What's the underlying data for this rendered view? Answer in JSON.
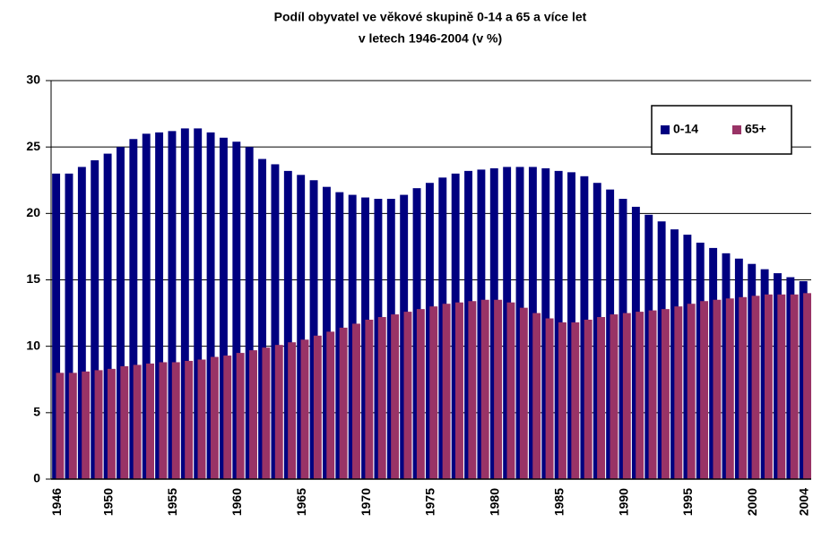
{
  "chart_data": {
    "type": "bar",
    "title": [
      "Podíl obyvatel ve věkové skupině 0-14 a 65 a více let",
      "v letech 1946-2004 (v %)"
    ],
    "categories": [
      "1946",
      null,
      null,
      null,
      "1950",
      null,
      null,
      null,
      null,
      "1955",
      null,
      null,
      null,
      null,
      "1960",
      null,
      null,
      null,
      null,
      "1965",
      null,
      null,
      null,
      null,
      "1970",
      null,
      null,
      null,
      null,
      "1975",
      null,
      null,
      null,
      null,
      "1980",
      null,
      null,
      null,
      null,
      "1985",
      null,
      null,
      null,
      null,
      "1990",
      null,
      null,
      null,
      null,
      "1995",
      null,
      null,
      null,
      null,
      "2000",
      null,
      null,
      null,
      "2004"
    ],
    "series": [
      {
        "name": "0-14",
        "color": "#000080",
        "values": [
          23.0,
          23.0,
          23.5,
          24.0,
          24.5,
          25.0,
          25.6,
          26.0,
          26.1,
          26.2,
          26.4,
          26.4,
          26.1,
          25.7,
          25.4,
          25.0,
          24.1,
          23.7,
          23.2,
          22.9,
          22.5,
          22.0,
          21.6,
          21.4,
          21.2,
          21.1,
          21.1,
          21.4,
          21.9,
          22.3,
          22.7,
          23.0,
          23.2,
          23.3,
          23.4,
          23.5,
          23.5,
          23.5,
          23.4,
          23.2,
          23.1,
          22.8,
          22.3,
          21.8,
          21.1,
          20.5,
          19.9,
          19.4,
          18.8,
          18.4,
          17.8,
          17.4,
          17.0,
          16.6,
          16.2,
          15.8,
          15.5,
          15.2,
          14.9
        ]
      },
      {
        "name": "65+",
        "color": "#993366",
        "values": [
          8.0,
          8.0,
          8.1,
          8.2,
          8.3,
          8.5,
          8.6,
          8.7,
          8.8,
          8.8,
          8.9,
          9.0,
          9.2,
          9.3,
          9.5,
          9.7,
          9.9,
          10.1,
          10.3,
          10.5,
          10.8,
          11.1,
          11.4,
          11.7,
          12.0,
          12.2,
          12.4,
          12.6,
          12.8,
          13.0,
          13.2,
          13.3,
          13.4,
          13.5,
          13.5,
          13.3,
          12.9,
          12.5,
          12.1,
          11.8,
          11.8,
          12.0,
          12.2,
          12.4,
          12.5,
          12.6,
          12.7,
          12.8,
          13.0,
          13.2,
          13.4,
          13.5,
          13.6,
          13.7,
          13.8,
          13.9,
          13.9,
          13.9,
          14.0
        ]
      }
    ],
    "ylim": [
      0,
      30
    ],
    "yticks": [
      0,
      5,
      10,
      15,
      20,
      25,
      30
    ],
    "grid": true,
    "legend": "top-right"
  }
}
